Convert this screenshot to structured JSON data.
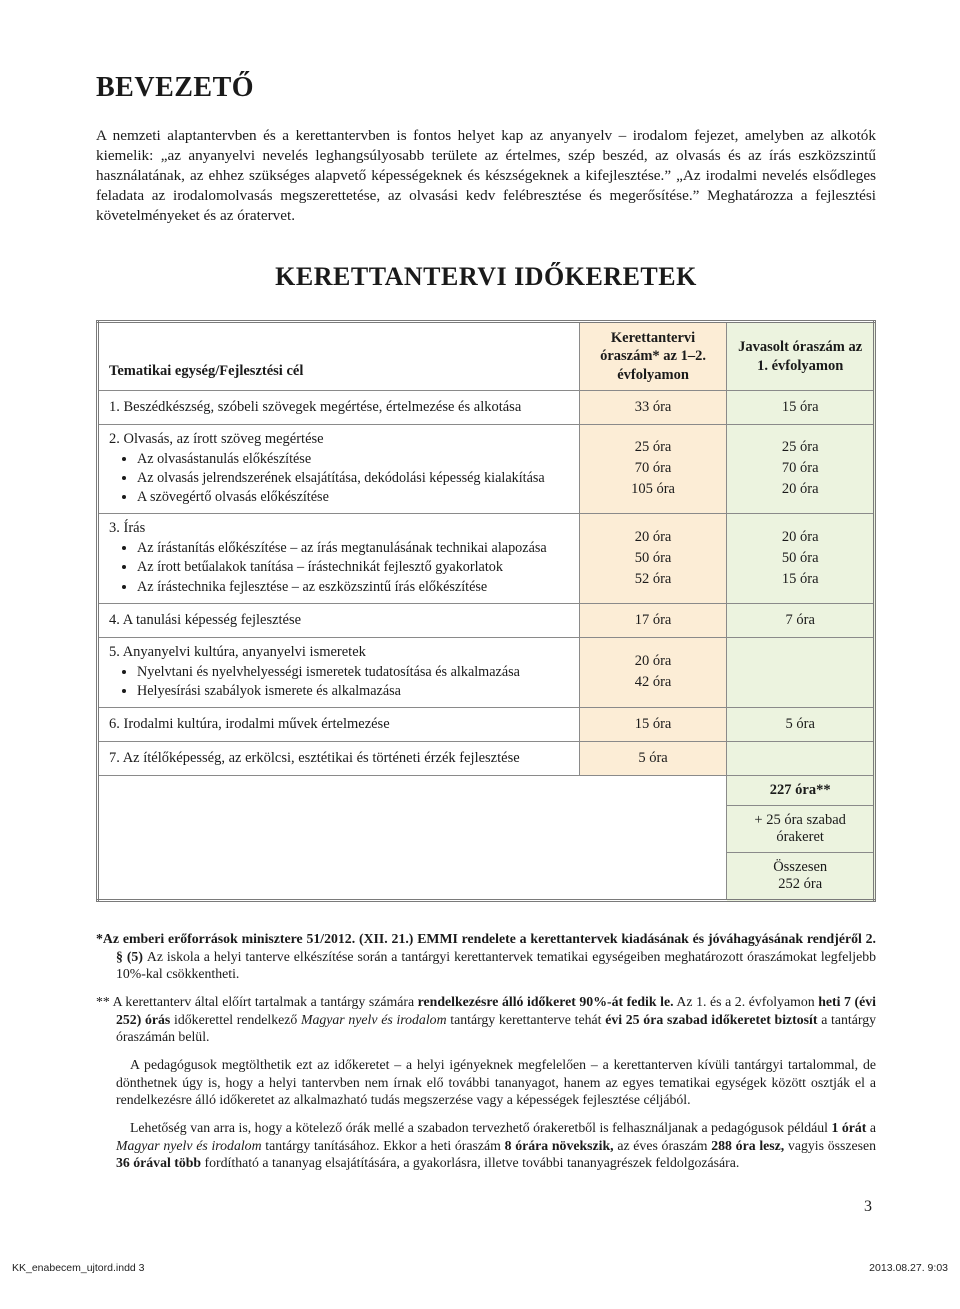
{
  "heading1": "BEVEZETŐ",
  "intro": "A nemzeti alaptantervben és a kerettantervben is fontos helyet kap az anyanyelv – irodalom fejezet, amelyben az alkotók kiemelik: „az anyanyelvi nevelés leghangsúlyosabb területe az értelmes, szép beszéd, az olvasás és az írás eszközszintű használatának, az ehhez szükséges alapvető képességeknek és készségeknek a kifejlesztése.” „Az irodalmi nevelés elsődleges feladata az irodalomolvasás megszerettetése, az olvasási kedv felébresztése és megerősítése.” Meghatározza a fejlesztési követelményeket és az óratervet.",
  "heading2": "KERETTANTERVI IDŐKERETEK",
  "table": {
    "head": {
      "c0": "Tematikai egység/Fejlesztési cél",
      "c1": "Kerettantervi óraszám* az 1–2. évfolyamon",
      "c2": "Javasolt óraszám az 1. évfolyamon"
    },
    "rows": [
      {
        "title": "1. Beszédkészség, szóbeli szövegek megértése, értelmezése és alkotása",
        "v1": "33 óra",
        "v2": "15 óra"
      },
      {
        "title": "2. Olvasás, az írott szöveg megértése",
        "subs": [
          "Az olvasástanulás előkészítése",
          "Az olvasás jelrendszerének elsajátítása, dekódolási képesség kialakítása",
          "A szövegértő olvasás előkészítése"
        ],
        "v1": "25 óra\n70 óra\n105 óra",
        "v2": "25 óra\n70 óra\n20 óra"
      },
      {
        "title": "3. Írás",
        "subs": [
          "Az írástanítás előkészítése – az írás megtanulásának technikai alapozása",
          "Az írott betűalakok tanítása – írástechnikát fejlesztő gyakorlatok",
          "Az írástechnika fejlesztése – az eszközszintű írás előkészítése"
        ],
        "v1": "20 óra\n50 óra\n52 óra",
        "v2": "20 óra\n50 óra\n15 óra"
      },
      {
        "title": "4. A tanulási képesség fejlesztése",
        "v1": "17 óra",
        "v2": "7 óra"
      },
      {
        "title": "5. Anyanyelvi kultúra, anyanyelvi ismeretek",
        "subs": [
          "Nyelvtani és nyelvhelyességi ismeretek tudatosítása és alkalmazása",
          "Helyesírási szabályok ismerete és alkalmazása"
        ],
        "justify": true,
        "v1": "20 óra\n42 óra",
        "v2": ""
      },
      {
        "title": "6. Irodalmi kultúra, irodalmi művek értelmezése",
        "v1": "15 óra",
        "v2": "5 óra"
      },
      {
        "title": "7. Az ítélőképesség, az erkölcsi, esztétikai és történeti érzék fejlesztése",
        "v1": "5 óra",
        "v2": ""
      }
    ],
    "totals": [
      {
        "label": "227 óra**",
        "bold": true
      },
      {
        "label": "+ 25 óra szabad órakeret",
        "bold": false
      },
      {
        "label": "Összesen 252 óra",
        "bold": false
      }
    ]
  },
  "footnote1_a": "*Az emberi erőforrások minisztere 51/2012. (XII. 21.) EMMI rendelete a kerettantervek kiadásának és jóváhagyásának rendjéről 2. § (5) ",
  "footnote1_b": "Az iskola a helyi tanterve elkészítése során a tantárgyi kerettantervek tematikai egységeiben meghatározott óraszámokat legfeljebb 10%-kal csökkentheti.",
  "footnote2_lead": "** A kerettanterv által előírt tartalmak a tantárgy számára ",
  "footnote2_bold1": "rendelkezésre álló időkeret 90%-át fedik le.",
  "footnote2_mid1": " Az 1. és a 2. évfolyamon ",
  "footnote2_bold2": "heti 7 (évi 252) órás",
  "footnote2_mid2": " időkerettel rendelkező ",
  "footnote2_em1": "Magyar nyelv és irodalom",
  "footnote2_mid3": " tantárgy kerettanterve tehát ",
  "footnote2_bold3": "évi 25 óra szabad időkeretet biztosít",
  "footnote2_tail1": " a tantárgy óraszámán belül.",
  "footnote2_p2": "A pedagógusok megtölthetik ezt az időkeretet – a helyi igényeknek megfelelően – a kerettanterven kívüli tantárgyi tartalommal, de dönthetnek úgy is, hogy a helyi tantervben nem írnak elő további tananyagot, hanem az egyes tematikai egységek között osztják el a rendelkezésre álló időkeretet az alkalmazható tudás megszerzése vagy a képességek fejlesztése céljából.",
  "footnote2_p3a": "Lehetőség van arra is, hogy a kötelező órák mellé a szabadon tervezhető órakeretből is felhasználjanak a pedagógusok például ",
  "footnote2_p3_bold1": "1 órát",
  "footnote2_p3b": " a ",
  "footnote2_p3_em": "Magyar nyelv és irodalom",
  "footnote2_p3c": " tantárgy tanításához. Ekkor a heti óraszám ",
  "footnote2_p3_bold2": "8 órára növekszik,",
  "footnote2_p3d": " az éves óraszám ",
  "footnote2_p3_bold3": "288 óra lesz,",
  "footnote2_p3e": " vagyis összesen ",
  "footnote2_p3_bold4": "36 órával több",
  "footnote2_p3f": " fordítható a tananyag elsajátítására, a gyakorlásra, illetve további tananyagrészek feldolgozására.",
  "page_number": "3",
  "print_left": "KK_enabecem_ujtord.indd   3",
  "print_right": "2013.08.27.   9:03"
}
